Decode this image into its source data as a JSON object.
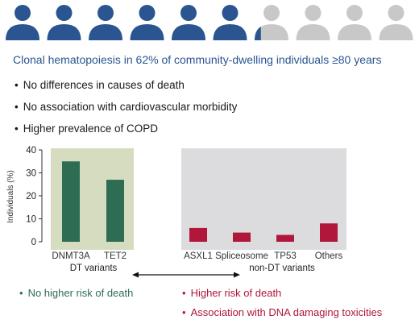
{
  "people": {
    "total": 10,
    "filled": 6.2,
    "filled_color": "#2a5590",
    "empty_color": "#c8c8c8"
  },
  "headline": "Clonal hematopoiesis in 62% of community-dwelling individuals ≥80 years",
  "bullets": [
    "No differences in causes of death",
    "No association with cardiovascular morbidity",
    "Higher prevalence of COPD"
  ],
  "chart_data": {
    "type": "bar",
    "ylabel": "Individuals (%)",
    "ylim": [
      0,
      40
    ],
    "yticks": [
      0,
      10,
      20,
      30,
      40
    ],
    "groups": [
      {
        "label": "DT variants",
        "background": "#d6dcbf",
        "bar_color": "#2e6d54",
        "categories": [
          "DNMT3A",
          "TET2"
        ],
        "values": [
          35,
          27
        ]
      },
      {
        "label": "non-DT variants",
        "background": "#dcdcdf",
        "bar_color": "#b0173a",
        "categories": [
          "ASXL1",
          "Spliceosome",
          "TP53",
          "Others"
        ],
        "values": [
          6,
          4,
          3,
          8
        ]
      }
    ]
  },
  "legend_left": "No higher risk of death",
  "legend_right": [
    "Higher risk of death",
    "Association with DNA damaging toxicities"
  ]
}
